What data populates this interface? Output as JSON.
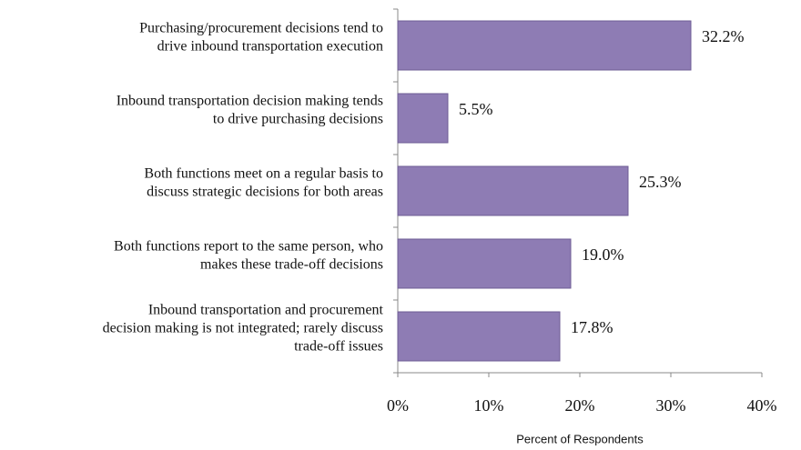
{
  "chart_data": {
    "type": "barh",
    "categories": [
      [
        "Purchasing/procurement decisions tend to",
        "drive inbound transportation execution"
      ],
      [
        "Inbound transportation decision making tends",
        "to drive purchasing decisions"
      ],
      [
        "Both functions meet on a regular basis to",
        "discuss strategic decisions for both areas"
      ],
      [
        "Both functions report to the same person, who",
        "makes these trade-off decisions"
      ],
      [
        "Inbound transportation and procurement",
        "decision making is not integrated; rarely discuss",
        "trade-off issues"
      ]
    ],
    "values": [
      32.2,
      5.5,
      25.3,
      19.0,
      17.8
    ],
    "value_labels": [
      "32.2%",
      "5.5%",
      "25.3%",
      "19.0%",
      "17.8%"
    ],
    "color": "#8e7cb4",
    "xlim": [
      0,
      40
    ],
    "xticks": [
      {
        "value": 0,
        "label": "0%"
      },
      {
        "value": 10,
        "label": "10%"
      },
      {
        "value": 20,
        "label": "20%"
      },
      {
        "value": 30,
        "label": "30%"
      },
      {
        "value": 40,
        "label": "40%"
      }
    ],
    "xlabel": "Percent of Respondents"
  }
}
